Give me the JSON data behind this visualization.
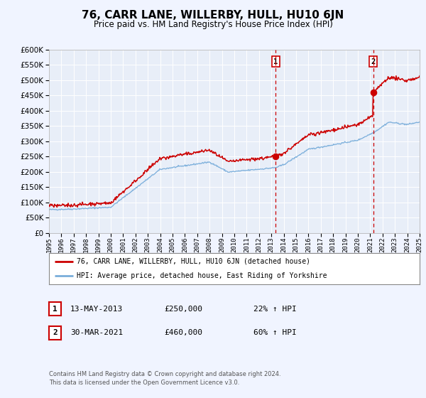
{
  "title": "76, CARR LANE, WILLERBY, HULL, HU10 6JN",
  "subtitle": "Price paid vs. HM Land Registry's House Price Index (HPI)",
  "title_fontsize": 11,
  "subtitle_fontsize": 8.5,
  "bg_color": "#f0f4ff",
  "plot_bg_color": "#e8eef8",
  "grid_color": "#ffffff",
  "sale1_date_num": 2013.36,
  "sale1_price": 250000,
  "sale1_label": "1",
  "sale1_date_str": "13-MAY-2013",
  "sale1_hpi_pct": "22%",
  "sale2_date_num": 2021.24,
  "sale2_price": 460000,
  "sale2_label": "2",
  "sale2_date_str": "30-MAR-2021",
  "sale2_hpi_pct": "60%",
  "red_line_color": "#cc0000",
  "blue_line_color": "#7aaedb",
  "dashed_line_color": "#cc0000",
  "legend_label1": "76, CARR LANE, WILLERBY, HULL, HU10 6JN (detached house)",
  "legend_label2": "HPI: Average price, detached house, East Riding of Yorkshire",
  "footer1": "Contains HM Land Registry data © Crown copyright and database right 2024.",
  "footer2": "This data is licensed under the Open Government Licence v3.0.",
  "xmin": 1995,
  "xmax": 2025,
  "ymin": 0,
  "ymax": 600000,
  "yticks": [
    0,
    50000,
    100000,
    150000,
    200000,
    250000,
    300000,
    350000,
    400000,
    450000,
    500000,
    550000,
    600000
  ]
}
